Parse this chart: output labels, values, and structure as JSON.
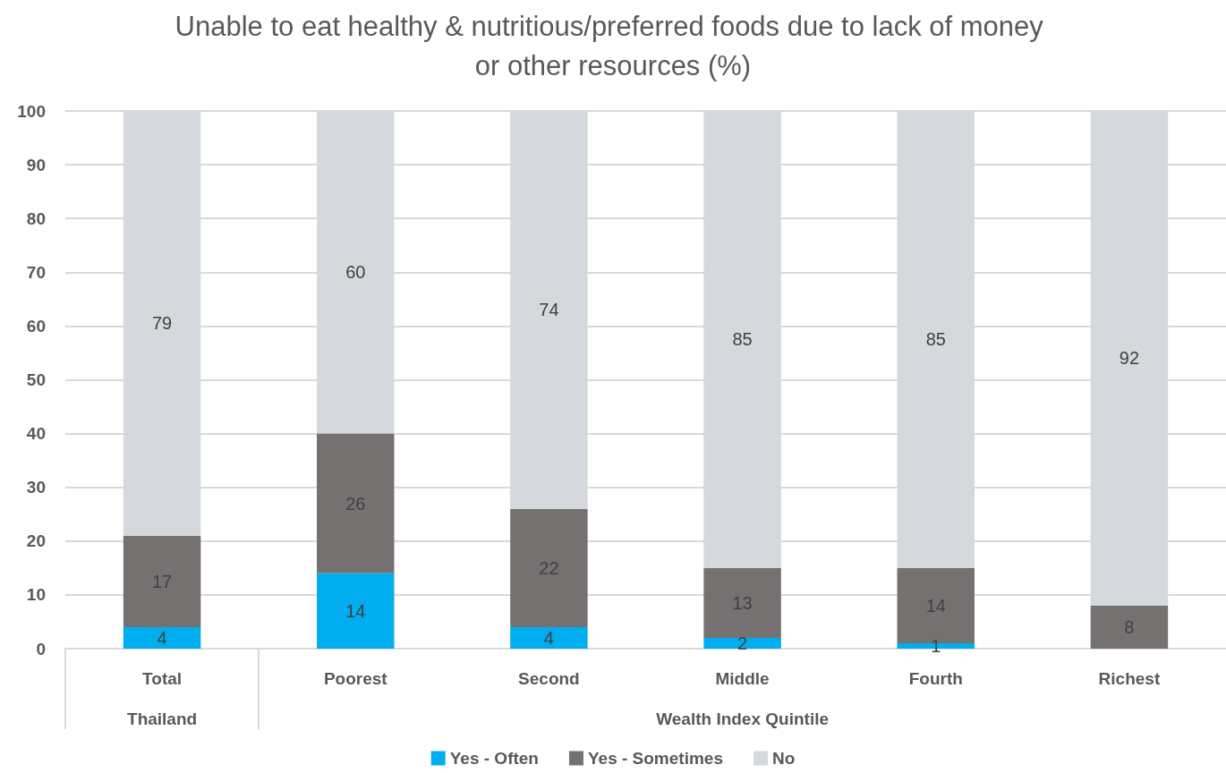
{
  "chart_data": {
    "type": "bar",
    "title": "Unable to eat healthy & nutritious/preferred foods due to lack of money or other resources (%)",
    "categories": [
      "Total",
      "Poorest",
      "Second",
      "Middle",
      "Fourth",
      "Richest"
    ],
    "series": [
      {
        "name": "Yes - Often",
        "color": "#00aeef",
        "values": [
          4,
          14,
          4,
          2,
          1,
          null
        ]
      },
      {
        "name": "Yes - Sometimes",
        "color": "#767171",
        "values": [
          17,
          26,
          22,
          13,
          14,
          8
        ]
      },
      {
        "name": "No",
        "color": "#d5d8dc",
        "values": [
          79,
          60,
          74,
          85,
          85,
          92
        ]
      }
    ],
    "stacked": true,
    "data_labels": true,
    "ylim": [
      0,
      100
    ],
    "yticks": [
      0,
      10,
      20,
      30,
      40,
      50,
      60,
      70,
      80,
      90,
      100
    ],
    "grid": "y",
    "legend": "bottom",
    "annotations": [
      "Thailand",
      "Wealth Index Quintile"
    ]
  }
}
